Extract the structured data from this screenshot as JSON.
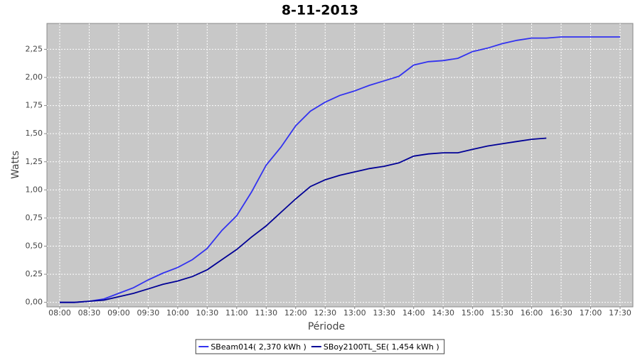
{
  "chart_data": {
    "type": "line",
    "title": "8-11-2013",
    "xlabel": "Période",
    "ylabel": "Watts",
    "x": [
      "08:00",
      "08:15",
      "08:30",
      "08:45",
      "09:00",
      "09:15",
      "09:30",
      "09:45",
      "10:00",
      "10:15",
      "10:30",
      "10:45",
      "11:00",
      "11:15",
      "11:30",
      "11:45",
      "12:00",
      "12:15",
      "12:30",
      "12:45",
      "13:00",
      "13:15",
      "13:30",
      "13:45",
      "14:00",
      "14:15",
      "14:30",
      "14:45",
      "15:00",
      "15:15",
      "15:30",
      "15:45",
      "16:00",
      "16:15",
      "16:30",
      "16:45",
      "17:00",
      "17:15",
      "17:30"
    ],
    "series": [
      {
        "name": "SBeam014( 2,370 kWh )",
        "color": "#3232f0",
        "values": [
          0,
          0,
          0.01,
          0.03,
          0.08,
          0.13,
          0.2,
          0.26,
          0.31,
          0.38,
          0.48,
          0.64,
          0.77,
          0.98,
          1.22,
          1.38,
          1.57,
          1.7,
          1.78,
          1.84,
          1.88,
          1.93,
          1.97,
          2.01,
          2.11,
          2.14,
          2.15,
          2.17,
          2.23,
          2.26,
          2.3,
          2.33,
          2.35,
          2.35,
          2.36,
          2.36,
          2.36,
          2.36,
          2.36
        ]
      },
      {
        "name": "SBoy2100TL_SE( 1,454 kWh )",
        "color": "#000096",
        "values": [
          0,
          0,
          0.01,
          0.02,
          0.05,
          0.08,
          0.12,
          0.16,
          0.19,
          0.23,
          0.29,
          0.38,
          0.47,
          0.58,
          0.68,
          0.8,
          0.92,
          1.03,
          1.09,
          1.13,
          1.16,
          1.19,
          1.21,
          1.24,
          1.3,
          1.32,
          1.33,
          1.33,
          1.36,
          1.39,
          1.41,
          1.43,
          1.45,
          1.46,
          null,
          null,
          null,
          null,
          null
        ]
      }
    ],
    "xlim": [
      "07:47",
      "17:43"
    ],
    "xticks": [
      "08:00",
      "08:30",
      "09:00",
      "09:30",
      "10:00",
      "10:30",
      "11:00",
      "11:30",
      "12:00",
      "12:30",
      "13:00",
      "13:30",
      "14:00",
      "14:30",
      "15:00",
      "15:30",
      "16:00",
      "16:30",
      "17:00",
      "17:30"
    ],
    "ylim": [
      -0.04,
      2.48
    ],
    "yticks": [
      {
        "value": 0,
        "label": "0,00"
      },
      {
        "value": 0.25,
        "label": "0,25"
      },
      {
        "value": 0.5,
        "label": "0,50"
      },
      {
        "value": 0.75,
        "label": "0,75"
      },
      {
        "value": 1,
        "label": "1,00"
      },
      {
        "value": 1.25,
        "label": "1,25"
      },
      {
        "value": 1.5,
        "label": "1,50"
      },
      {
        "value": 1.75,
        "label": "1,75"
      },
      {
        "value": 2,
        "label": "2,00"
      },
      {
        "value": 2.25,
        "label": "2,25"
      }
    ],
    "grid": true,
    "legend": "bottom",
    "background": "#c8c8c8"
  }
}
